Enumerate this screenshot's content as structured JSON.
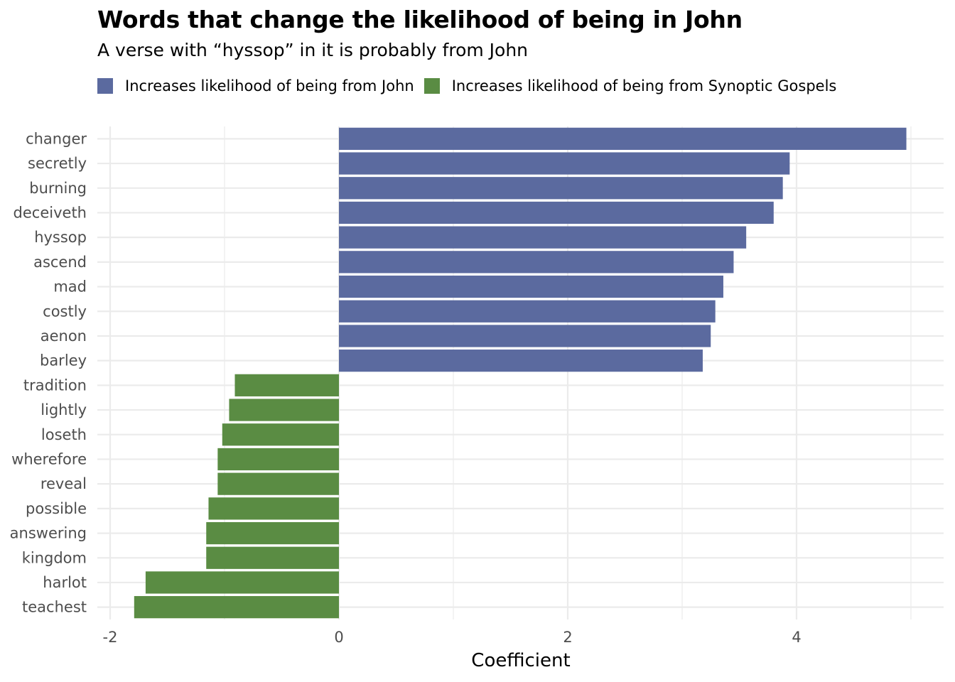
{
  "chart_data": {
    "type": "bar",
    "orientation": "horizontal",
    "title": "Words that change the likelihood of being in John",
    "subtitle": "A verse with “hyssop” in it is probably from John",
    "xlabel": "Coefficient",
    "ylabel": "",
    "xlim": [
      -2.05,
      5.3
    ],
    "xticks": [
      -2,
      0,
      2,
      4
    ],
    "xtick_labels": [
      "-2",
      "0",
      "2",
      "4"
    ],
    "grid": true,
    "legend_position": "top-left",
    "legend": [
      {
        "label": "Increases likelihood of being from John",
        "color": "#5b6a9f"
      },
      {
        "label": "Increases likelihood of being from Synoptic Gospels",
        "color": "#5a8c43"
      }
    ],
    "categories": [
      "changer",
      "secretly",
      "burning",
      "deceiveth",
      "hyssop",
      "ascend",
      "mad",
      "costly",
      "aenon",
      "barley",
      "tradition",
      "lightly",
      "loseth",
      "wherefore",
      "reveal",
      "possible",
      "answering",
      "kingdom",
      "harlot",
      "teachest"
    ],
    "values": [
      4.96,
      3.94,
      3.88,
      3.8,
      3.56,
      3.45,
      3.36,
      3.29,
      3.25,
      3.18,
      -0.91,
      -0.96,
      -1.02,
      -1.06,
      -1.06,
      -1.14,
      -1.16,
      -1.16,
      -1.69,
      -1.79
    ],
    "groups": [
      "john",
      "john",
      "john",
      "john",
      "john",
      "john",
      "john",
      "john",
      "john",
      "john",
      "synoptic",
      "synoptic",
      "synoptic",
      "synoptic",
      "synoptic",
      "synoptic",
      "synoptic",
      "synoptic",
      "synoptic",
      "synoptic"
    ],
    "group_colors": {
      "john": "#5b6a9f",
      "synoptic": "#5a8c43"
    }
  }
}
